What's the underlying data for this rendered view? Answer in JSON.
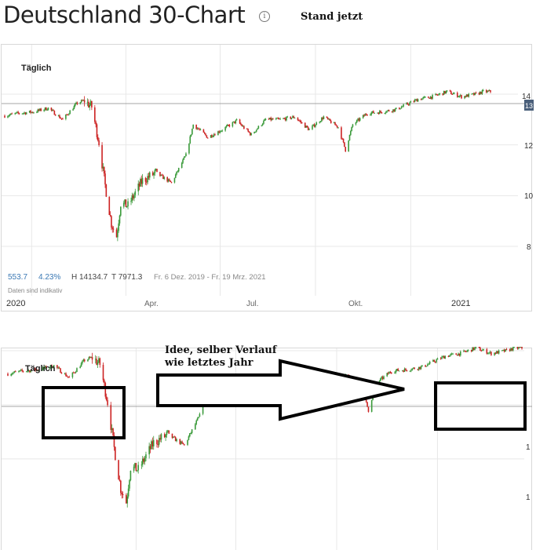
{
  "header": {
    "title": "Deutschland 30-Chart",
    "info_icon": "info-icon",
    "stand_label": "Stand jetzt"
  },
  "chart_top": {
    "period_label": "Täglich",
    "stats": {
      "change": "553.7",
      "change_pct": "4.23%",
      "high": "H 14134.7",
      "low": "T 7971.3",
      "range": "Fr. 6 Dez. 2019 - Fr. 19 Mrz. 2021"
    },
    "note": "Daten sind indikativ",
    "y_ticks": [
      "14",
      "12",
      "10",
      "8"
    ],
    "x_ticks": [
      "2020",
      "Apr.",
      "Jul.",
      "Okt.",
      "2021"
    ],
    "price_tag": "13"
  },
  "chart_bottom": {
    "period_label": "Täglich",
    "y_ticks": [
      "1",
      "1"
    ],
    "annotation": "Idee, selber Verlauf wie letztes Jahr"
  },
  "colors": {
    "up": "#3a9a3a",
    "down": "#cc2222",
    "grid": "#e8e8e8",
    "ref_line": "#888888",
    "price_tag_bg": "#4a5f7a",
    "stat_blue": "#3a78b4"
  },
  "chart_data": {
    "type": "line",
    "title": "Deutschland 30-Chart",
    "x_range": [
      "2019-12-06",
      "2021-03-19"
    ],
    "ylim": [
      7500,
      14300
    ],
    "y_ticks": [
      8000,
      10000,
      12000,
      14000
    ],
    "x_ticks": [
      "2020",
      "Apr.",
      "Jul.",
      "Okt.",
      "2021"
    ],
    "x": [
      "2019-12-06",
      "2019-12-20",
      "2020-01-03",
      "2020-01-17",
      "2020-01-31",
      "2020-02-14",
      "2020-02-21",
      "2020-02-28",
      "2020-03-06",
      "2020-03-12",
      "2020-03-18",
      "2020-03-23",
      "2020-03-27",
      "2020-04-03",
      "2020-04-17",
      "2020-04-30",
      "2020-05-15",
      "2020-05-29",
      "2020-06-05",
      "2020-06-19",
      "2020-07-03",
      "2020-07-17",
      "2020-07-31",
      "2020-08-14",
      "2020-08-28",
      "2020-09-11",
      "2020-09-25",
      "2020-10-09",
      "2020-10-23",
      "2020-10-30",
      "2020-11-06",
      "2020-11-20",
      "2020-12-04",
      "2020-12-18",
      "2021-01-08",
      "2021-01-22",
      "2021-02-05",
      "2021-02-19",
      "2021-03-05",
      "2021-03-12",
      "2021-03-19"
    ],
    "series": [
      {
        "values": [
          13150,
          13250,
          13300,
          13450,
          13000,
          13650,
          13750,
          13500,
          12100,
          10400,
          8900,
          8400,
          9700,
          9600,
          10600,
          10900,
          10500,
          11600,
          12800,
          12300,
          12600,
          12950,
          12400,
          13000,
          13000,
          13100,
          12600,
          13100,
          12700,
          11800,
          12800,
          13250,
          13300,
          13400,
          13800,
          13900,
          14100,
          13900,
          14000,
          14100,
          14100
        ]
      }
    ]
  }
}
